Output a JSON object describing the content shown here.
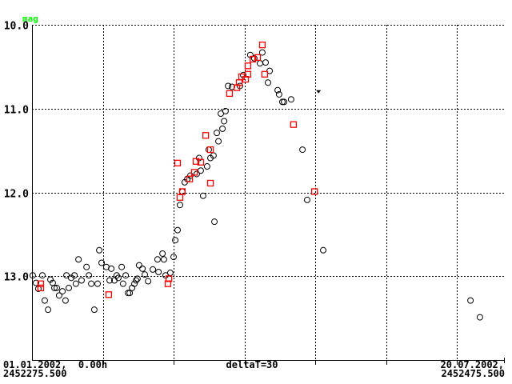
{
  "chart_data": {
    "type": "scatter",
    "ylabel": "mag",
    "y_inverted": true,
    "ylim": [
      10.0,
      14.0
    ],
    "xlim": [
      2452275.5,
      2452475.5
    ],
    "y_ticks": [
      10.0,
      11.0,
      12.0,
      13.0
    ],
    "y_tick_labels": [
      "10.0",
      "11.0",
      "12.0",
      "13.0"
    ],
    "x_grid_step_days": 30,
    "grid": true,
    "x_start_label": [
      "01.01.2002,  0.00h",
      "2452275.500"
    ],
    "x_center_label": "deltaT=30",
    "x_end_label": [
      "20.07.2002,",
      "2452475.500"
    ],
    "colors": {
      "axis": "#000000",
      "unit_label": "#00ff00",
      "circles": "#000000",
      "squares": "#ff0000"
    },
    "series": [
      {
        "marker": "circle",
        "color": "#000000",
        "points": [
          [
            2452275.8,
            12.99
          ],
          [
            2452277.2,
            13.08
          ],
          [
            2452278.2,
            13.15
          ],
          [
            2452279.9,
            12.99
          ],
          [
            2452280.9,
            13.29
          ],
          [
            2452282.3,
            13.4
          ],
          [
            2452283.3,
            13.04
          ],
          [
            2452284.3,
            13.08
          ],
          [
            2452285.0,
            13.14
          ],
          [
            2452286.0,
            13.14
          ],
          [
            2452287.0,
            13.23
          ],
          [
            2452288.4,
            13.18
          ],
          [
            2452289.7,
            13.29
          ],
          [
            2452290.1,
            12.99
          ],
          [
            2452291.1,
            13.14
          ],
          [
            2452292.1,
            13.02
          ],
          [
            2452293.5,
            12.99
          ],
          [
            2452294.1,
            13.09
          ],
          [
            2452295.2,
            12.8
          ],
          [
            2452296.5,
            13.05
          ],
          [
            2452298.6,
            12.89
          ],
          [
            2452299.6,
            12.99
          ],
          [
            2452300.6,
            13.09
          ],
          [
            2452301.9,
            13.4
          ],
          [
            2452303.3,
            13.09
          ],
          [
            2452304.0,
            12.69
          ],
          [
            2452305.0,
            12.84
          ],
          [
            2452307.0,
            12.89
          ],
          [
            2452308.4,
            13.05
          ],
          [
            2452309.1,
            12.91
          ],
          [
            2452310.4,
            13.05
          ],
          [
            2452311.4,
            12.99
          ],
          [
            2452312.1,
            13.02
          ],
          [
            2452313.5,
            12.89
          ],
          [
            2452314.1,
            13.09
          ],
          [
            2452315.2,
            12.99
          ],
          [
            2452316.2,
            13.2
          ],
          [
            2452316.9,
            13.2
          ],
          [
            2452317.9,
            13.14
          ],
          [
            2452318.9,
            13.09
          ],
          [
            2452319.6,
            13.05
          ],
          [
            2452320.2,
            13.03
          ],
          [
            2452320.9,
            12.87
          ],
          [
            2452322.3,
            12.91
          ],
          [
            2452323.3,
            12.98
          ],
          [
            2452324.7,
            13.06
          ],
          [
            2452326.7,
            12.92
          ],
          [
            2452328.7,
            12.8
          ],
          [
            2452329.1,
            12.95
          ],
          [
            2452330.8,
            12.73
          ],
          [
            2452331.4,
            12.8
          ],
          [
            2452332.1,
            12.99
          ],
          [
            2452334.1,
            12.96
          ],
          [
            2452335.5,
            12.77
          ],
          [
            2452336.2,
            12.57
          ],
          [
            2452337.2,
            12.45
          ],
          [
            2452338.2,
            12.15
          ],
          [
            2452339.2,
            11.99
          ],
          [
            2452340.2,
            11.88
          ],
          [
            2452341.3,
            11.84
          ],
          [
            2452342.6,
            11.8
          ],
          [
            2452345.3,
            11.78
          ],
          [
            2452346.3,
            11.59
          ],
          [
            2452347.0,
            11.74
          ],
          [
            2452348.0,
            12.04
          ],
          [
            2452349.7,
            11.69
          ],
          [
            2452350.4,
            11.49
          ],
          [
            2452351.1,
            11.59
          ],
          [
            2452352.4,
            11.56
          ],
          [
            2452352.8,
            12.35
          ],
          [
            2452354.5,
            11.39
          ],
          [
            2452353.8,
            11.29
          ],
          [
            2452356.2,
            11.24
          ],
          [
            2452356.9,
            11.15
          ],
          [
            2452355.5,
            11.06
          ],
          [
            2452357.5,
            11.03
          ],
          [
            2452358.6,
            10.73
          ],
          [
            2452360.2,
            10.74
          ],
          [
            2452363.6,
            10.73
          ],
          [
            2452365.0,
            10.6
          ],
          [
            2452368.0,
            10.36
          ],
          [
            2452369.7,
            10.4
          ],
          [
            2452372.1,
            10.46
          ],
          [
            2452373.1,
            10.33
          ],
          [
            2452374.5,
            10.45
          ],
          [
            2452376.2,
            10.55
          ],
          [
            2452375.5,
            10.69
          ],
          [
            2452379.6,
            10.78
          ],
          [
            2452380.2,
            10.83
          ],
          [
            2452381.6,
            10.92
          ],
          [
            2452382.3,
            10.92
          ],
          [
            2452385.3,
            10.89
          ],
          [
            2452390.1,
            11.49
          ],
          [
            2452392.1,
            12.09
          ],
          [
            2452398.9,
            12.69
          ],
          [
            2452461.3,
            13.29
          ],
          [
            2452465.3,
            13.49
          ]
        ]
      },
      {
        "marker": "square",
        "color": "#ff0000",
        "points": [
          [
            2452279.2,
            13.09
          ],
          [
            2452279.2,
            13.14
          ],
          [
            2452308.0,
            13.22
          ],
          [
            2452333.1,
            13.09
          ],
          [
            2452333.5,
            13.03
          ],
          [
            2452337.2,
            11.65
          ],
          [
            2452338.2,
            12.06
          ],
          [
            2452339.2,
            11.99
          ],
          [
            2452342.3,
            11.84
          ],
          [
            2452344.3,
            11.76
          ],
          [
            2452345.0,
            11.63
          ],
          [
            2452347.0,
            11.64
          ],
          [
            2452351.1,
            11.89
          ],
          [
            2452351.1,
            11.49
          ],
          [
            2452349.1,
            11.32
          ],
          [
            2452359.2,
            10.82
          ],
          [
            2452362.3,
            10.75
          ],
          [
            2452363.3,
            10.69
          ],
          [
            2452364.3,
            10.62
          ],
          [
            2452366.0,
            10.65
          ],
          [
            2452367.0,
            10.59
          ],
          [
            2452367.0,
            10.49
          ],
          [
            2452369.1,
            10.41
          ],
          [
            2452371.1,
            10.39
          ],
          [
            2452373.1,
            10.24
          ],
          [
            2452374.1,
            10.59
          ],
          [
            2452386.3,
            11.19
          ],
          [
            2452395.2,
            11.99
          ]
        ]
      },
      {
        "marker": "triangle-down",
        "color": "#000000",
        "points": [
          [
            2452396.9,
            10.8
          ]
        ]
      }
    ]
  }
}
